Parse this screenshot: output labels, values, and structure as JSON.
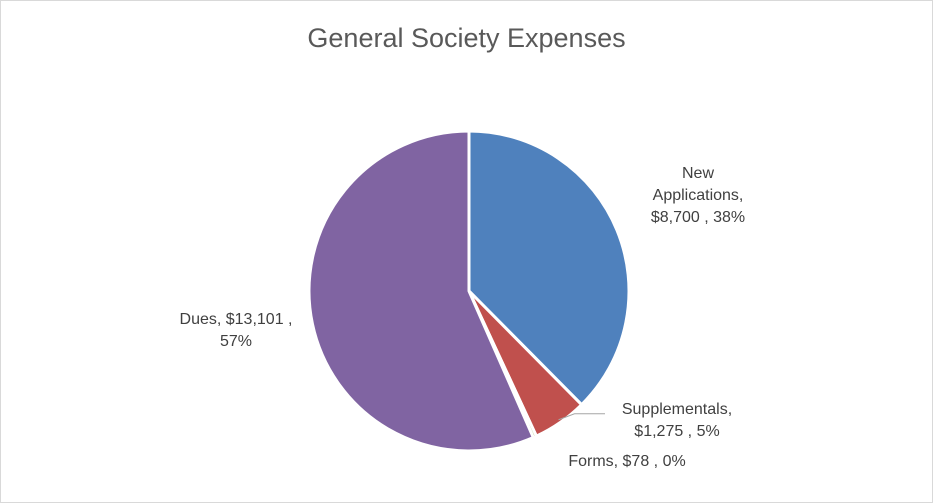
{
  "chart_data": {
    "type": "pie",
    "title": "General Society Expenses",
    "categories": [
      "New Applications",
      "Supplementals",
      "Forms",
      "Dues"
    ],
    "values": [
      8700,
      1275,
      78,
      13101
    ],
    "percent_labels": [
      "38%",
      "5%",
      "0%",
      "57%"
    ],
    "value_labels": [
      "$8,700",
      "$1,275",
      "$78",
      "$13,101"
    ],
    "colors": [
      "#4f81bd",
      "#c0504d",
      "#9bbb59",
      "#8064a2"
    ],
    "data_labels": [
      {
        "lines": [
          "New",
          "Applications,",
          "$8,700 , 38%"
        ]
      },
      {
        "lines": [
          "Supplementals,",
          "$1,275 , 5%"
        ]
      },
      {
        "lines": [
          "Forms, $78 , 0%"
        ]
      },
      {
        "lines": [
          "Dues, $13,101 ,",
          "57%"
        ]
      }
    ],
    "legend": "none"
  }
}
